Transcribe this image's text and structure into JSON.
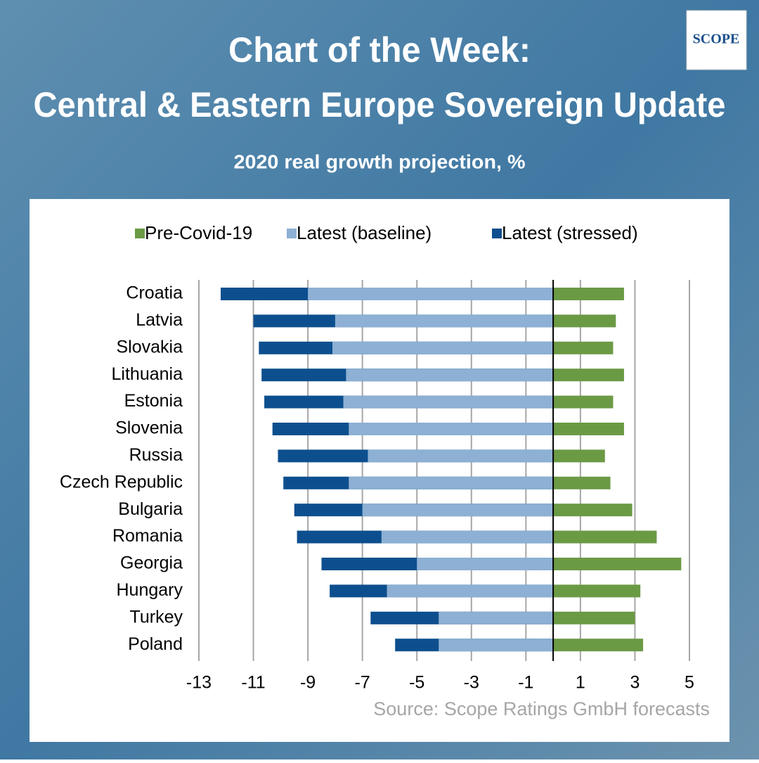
{
  "header": {
    "title_line1": "Chart of the Week:",
    "title_line2": "Central & Eastern Europe Sovereign Update",
    "logo": "SCOPE"
  },
  "chart_data": {
    "type": "bar",
    "orientation": "horizontal",
    "subtitle": "2020 real growth projection, %",
    "categories": [
      "Croatia",
      "Latvia",
      "Slovakia",
      "Lithuania",
      "Estonia",
      "Slovenia",
      "Russia",
      "Czech Republic",
      "Bulgaria",
      "Romania",
      "Georgia",
      "Hungary",
      "Turkey",
      "Poland"
    ],
    "series": [
      {
        "name": "Pre-Covid-19",
        "color": "#6b9a45",
        "values": [
          2.6,
          2.3,
          2.2,
          2.6,
          2.2,
          2.6,
          1.9,
          2.1,
          2.9,
          3.8,
          4.7,
          3.2,
          3.0,
          3.3
        ]
      },
      {
        "name": "Latest (baseline)",
        "color": "#8db0d4",
        "values": [
          -9.0,
          -8.0,
          -8.1,
          -7.6,
          -7.7,
          -7.5,
          -6.8,
          -7.5,
          -7.0,
          -6.3,
          -5.0,
          -6.1,
          -4.2,
          -4.2
        ]
      },
      {
        "name": "Latest (stressed)",
        "color": "#0d4f8e",
        "values": [
          -12.2,
          -11.0,
          -10.8,
          -10.7,
          -10.6,
          -10.3,
          -10.1,
          -9.9,
          -9.5,
          -9.4,
          -8.5,
          -8.2,
          -6.7,
          -5.8
        ]
      }
    ],
    "xlim": [
      -13,
      5
    ],
    "xticks": [
      -13,
      -11,
      -9,
      -7,
      -5,
      -3,
      -1,
      1,
      3,
      5
    ],
    "grid": true,
    "legend": "top",
    "source": "Source: Scope Ratings GmbH forecasts"
  }
}
